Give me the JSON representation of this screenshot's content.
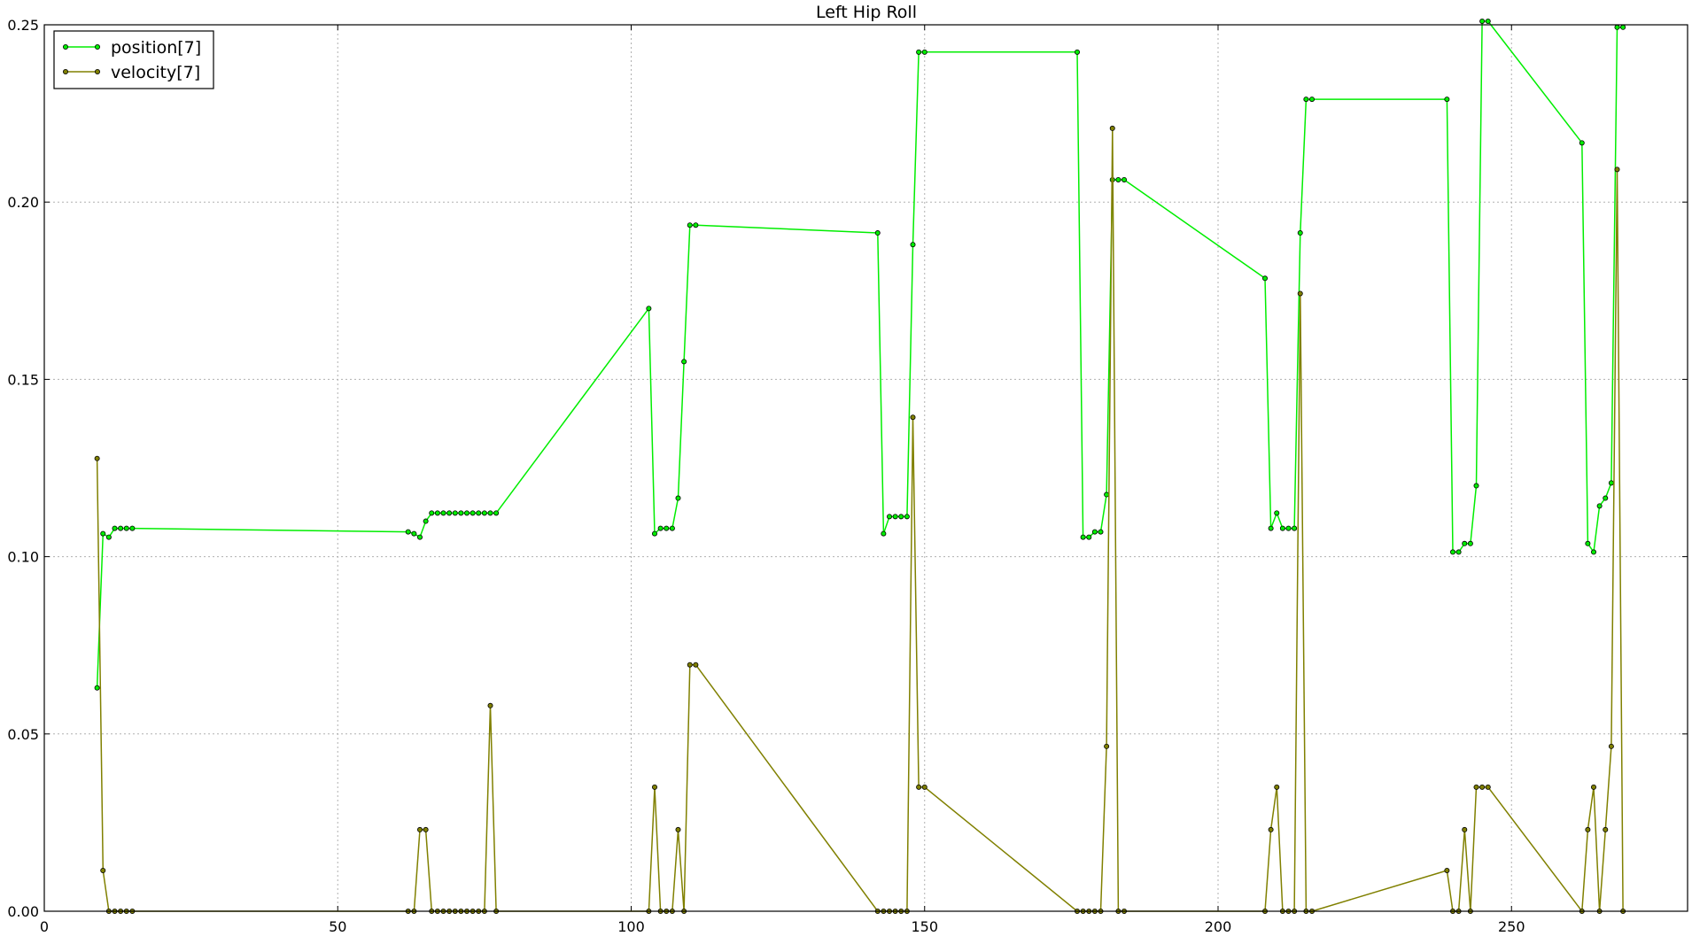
{
  "colors": {
    "position": "#00ee00",
    "velocity": "#808000",
    "marker_edge": "#000000"
  },
  "chart_data": {
    "type": "line",
    "title": "Left Hip Roll",
    "xlabel": "",
    "ylabel": "",
    "xlim": [
      0,
      280
    ],
    "ylim": [
      0,
      0.25
    ],
    "grid": true,
    "legend_position": "top-left",
    "x_ticks": [
      0,
      50,
      100,
      150,
      200,
      250
    ],
    "x_tick_labels": [
      "0",
      "50",
      "100",
      "150",
      "200",
      "250"
    ],
    "y_ticks": [
      0,
      0.05,
      0.1,
      0.15,
      0.2,
      0.25
    ],
    "y_tick_labels": [
      "0.00",
      "0.05",
      "0.10",
      "0.15",
      "0.20",
      "0.25"
    ],
    "series": [
      {
        "name": "position[7]",
        "color": "#00ee00",
        "x": [
          9,
          10,
          11,
          12,
          13,
          14,
          15,
          62,
          63,
          64,
          65,
          66,
          67,
          68,
          69,
          70,
          71,
          72,
          73,
          74,
          75,
          76,
          77,
          103,
          104,
          105,
          106,
          107,
          108,
          109,
          110,
          111,
          142,
          143,
          144,
          145,
          146,
          147,
          148,
          149,
          150,
          176,
          177,
          178,
          179,
          180,
          181,
          182,
          183,
          184,
          208,
          209,
          210,
          211,
          212,
          213,
          214,
          215,
          216,
          239,
          240,
          241,
          242,
          243,
          244,
          245,
          246,
          262,
          263,
          264,
          265,
          266,
          267,
          268,
          269
        ],
        "y": [
          0.063,
          0.1065,
          0.1055,
          0.108,
          0.108,
          0.108,
          0.108,
          0.107,
          0.1065,
          0.1055,
          0.11,
          0.1123,
          0.1123,
          0.1123,
          0.1123,
          0.1123,
          0.1123,
          0.1123,
          0.1123,
          0.1123,
          0.1123,
          0.1123,
          0.1123,
          0.17,
          0.1065,
          0.108,
          0.108,
          0.108,
          0.1165,
          0.155,
          0.1935,
          0.1935,
          0.1913,
          0.1065,
          0.1113,
          0.1113,
          0.1113,
          0.1113,
          0.188,
          0.2423,
          0.2423,
          0.2423,
          0.1055,
          0.1055,
          0.107,
          0.107,
          0.1175,
          0.2063,
          0.2063,
          0.2063,
          0.1785,
          0.108,
          0.1123,
          0.108,
          0.108,
          0.108,
          0.1913,
          0.229,
          0.229,
          0.229,
          0.1013,
          0.1013,
          0.1037,
          0.1037,
          0.12,
          0.251,
          0.251,
          0.2167,
          0.1037,
          0.1013,
          0.1143,
          0.1165,
          0.1208,
          0.2493,
          0.2493
        ]
      },
      {
        "name": "velocity[7]",
        "color": "#808000",
        "x": [
          9,
          10,
          11,
          12,
          13,
          14,
          15,
          62,
          63,
          64,
          65,
          66,
          67,
          68,
          69,
          70,
          71,
          72,
          73,
          74,
          75,
          76,
          77,
          103,
          104,
          105,
          106,
          107,
          108,
          109,
          110,
          111,
          142,
          143,
          144,
          145,
          146,
          147,
          148,
          149,
          150,
          176,
          177,
          178,
          179,
          180,
          181,
          182,
          183,
          184,
          208,
          209,
          210,
          211,
          212,
          213,
          214,
          215,
          216,
          239,
          240,
          241,
          242,
          243,
          244,
          245,
          246,
          262,
          263,
          264,
          265,
          266,
          267,
          268,
          269
        ],
        "y": [
          0.1277,
          0.0115,
          0.0,
          0.0,
          0.0,
          0.0,
          0.0,
          0.0,
          0.0,
          0.023,
          0.023,
          0.0,
          0.0,
          0.0,
          0.0,
          0.0,
          0.0,
          0.0,
          0.0,
          0.0,
          0.0,
          0.058,
          0.0,
          0.0,
          0.035,
          0.0,
          0.0,
          0.0,
          0.023,
          0.0,
          0.0695,
          0.0695,
          0.0,
          0.0,
          0.0,
          0.0,
          0.0,
          0.0,
          0.1393,
          0.035,
          0.035,
          0.0,
          0.0,
          0.0,
          0.0,
          0.0,
          0.0465,
          0.2208,
          0.0,
          0.0,
          0.0,
          0.023,
          0.035,
          0.0,
          0.0,
          0.0,
          0.1742,
          0.0,
          0.0,
          0.0115,
          0.0,
          0.0,
          0.023,
          0.0,
          0.035,
          0.035,
          0.035,
          0.0,
          0.023,
          0.035,
          0.0,
          0.023,
          0.0465,
          0.2092,
          0.0
        ]
      }
    ]
  }
}
